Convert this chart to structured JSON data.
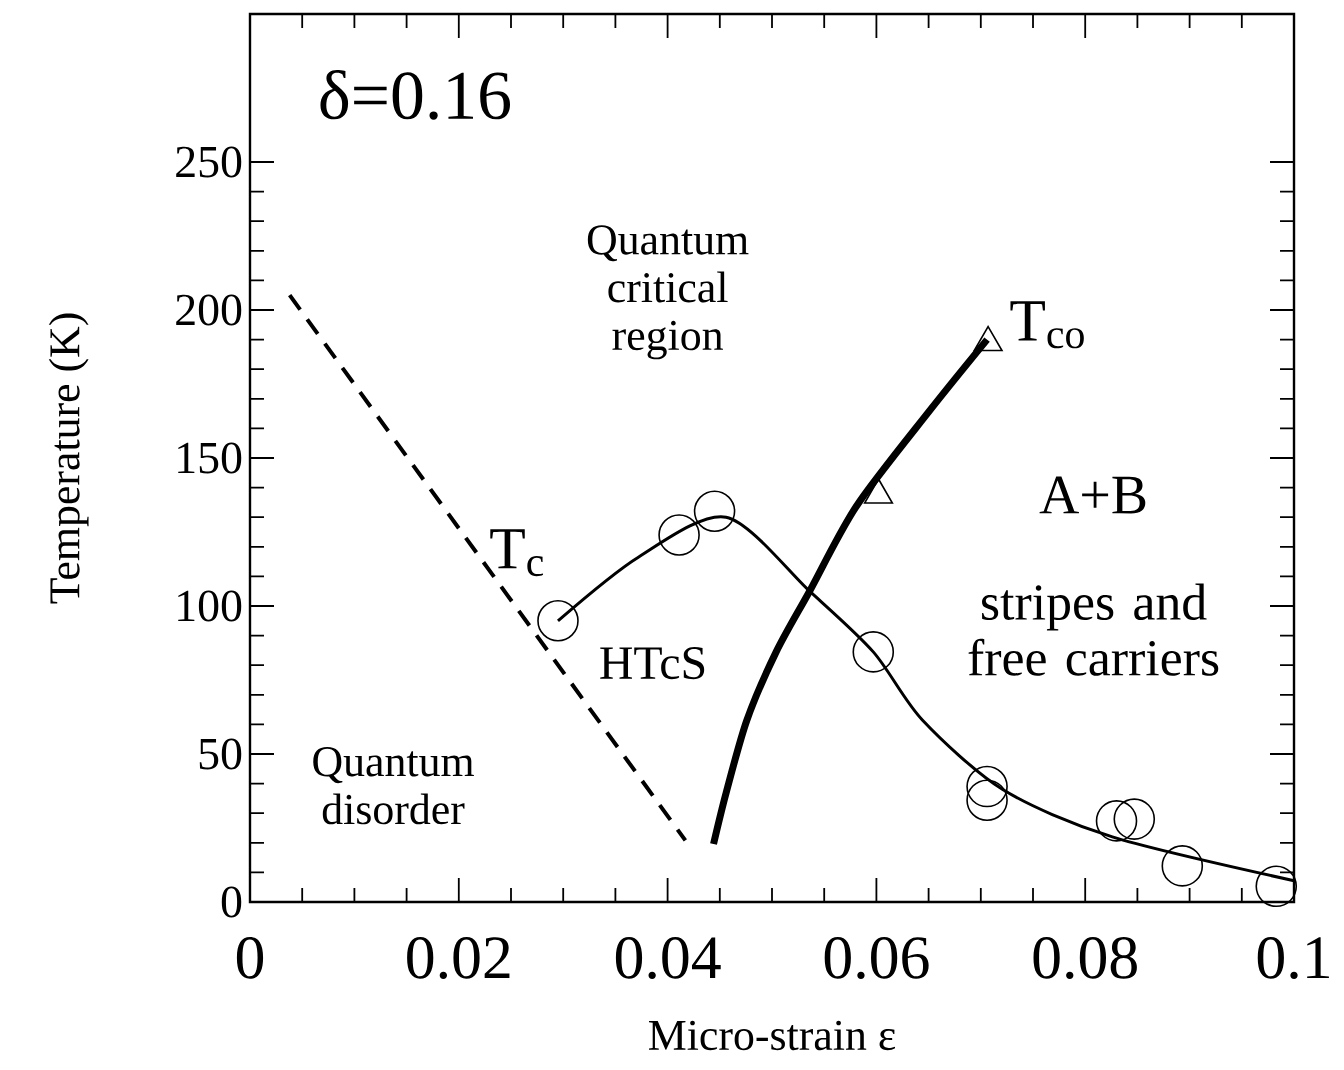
{
  "chart_data": {
    "type": "scatter",
    "xlabel": "Micro-strain ε",
    "ylabel": "Temperature (K)",
    "xlim": [
      0,
      0.1
    ],
    "ylim": [
      0,
      300
    ],
    "xticks": [
      0,
      0.02,
      0.04,
      0.06,
      0.08,
      0.1
    ],
    "yticks": [
      0,
      50,
      100,
      150,
      200,
      250
    ],
    "annotations": [
      "δ=0.16",
      "Quantum critical region",
      "T$_{c}$",
      "T$_{co}$",
      "A+B",
      "stripes and free carriers",
      "HTcS",
      "Quantum disorder"
    ],
    "series": [
      {
        "type": "scatter",
        "marker": "circle",
        "color": "#000000",
        "x": [
          0.0295,
          0.0411,
          0.0445,
          0.0597,
          0.0706,
          0.0706,
          0.083,
          0.0847,
          0.0893,
          0.0983
        ],
        "values": [
          95,
          124,
          132,
          84.5,
          39,
          34.4,
          27.4,
          28,
          12.2,
          5.3
        ]
      },
      {
        "type": "scatter",
        "marker": "triangle",
        "color": "#000000",
        "x": [
          0.0602,
          0.0707
        ],
        "values": [
          137.5,
          189
        ]
      },
      {
        "type": "line",
        "marker": "none",
        "line_style": "solid",
        "color": "#000000",
        "x": [
          0.0295,
          0.0372,
          0.0456,
          0.0536,
          0.0597,
          0.0644,
          0.0721,
          0.0826,
          0.1
        ],
        "values": [
          95,
          116.5,
          130,
          105,
          84.5,
          61.5,
          38,
          22,
          7.2
        ]
      },
      {
        "type": "line",
        "marker": "none",
        "line_style": "solid",
        "color": "#000000",
        "x": [
          0.0444,
          0.0456,
          0.0476,
          0.0504,
          0.0536,
          0.0581,
          0.0651,
          0.0706
        ],
        "values": [
          19.6,
          36.8,
          61.5,
          84.5,
          105,
          133.8,
          166,
          190
        ]
      },
      {
        "type": "line",
        "marker": "none",
        "line_style": "dashed",
        "color": "#000000",
        "x": [
          0.0038,
          0.0417
        ],
        "values": [
          205,
          20.8
        ]
      }
    ]
  }
}
